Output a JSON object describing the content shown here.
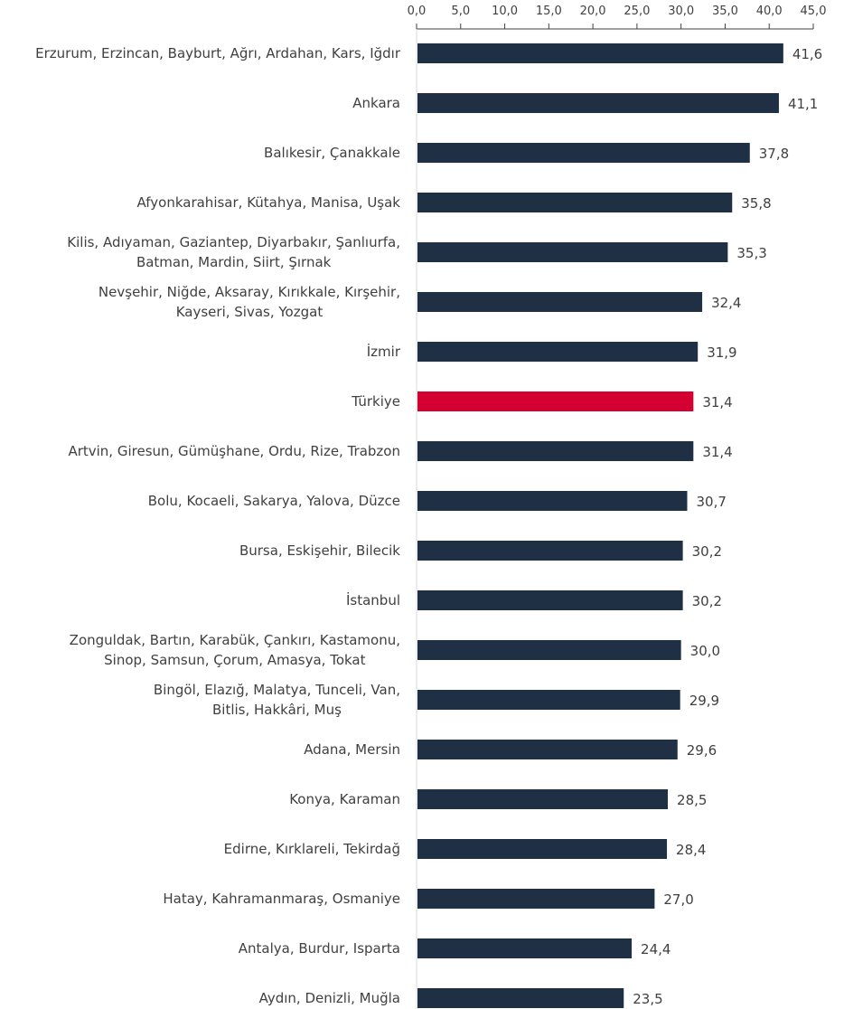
{
  "chart_data": {
    "type": "bar",
    "orientation": "horizontal",
    "title": "",
    "xlabel": "",
    "ylabel": "",
    "xlim": [
      0,
      45
    ],
    "x_ticks": [
      "0,0",
      "5,0",
      "10,0",
      "15,0",
      "20,0",
      "25,0",
      "30,0",
      "35,0",
      "40,0",
      "45,0"
    ],
    "axis_position": "top",
    "grid": false,
    "colors": {
      "default": "#1f3044",
      "highlight": "#d50032"
    },
    "highlight_category": "Türkiye",
    "categories": [
      [
        "Erzurum, Erzincan, Bayburt, Ağrı, Ardahan, Kars, Iğdır"
      ],
      [
        "Ankara"
      ],
      [
        "Balıkesir, Çanakkale"
      ],
      [
        "Afyonkarahisar, Kütahya, Manisa, Uşak"
      ],
      [
        "Kilis, Adıyaman, Gaziantep, Diyarbakır, Şanlıurfa,",
        "Batman, Mardin, Siirt, Şırnak"
      ],
      [
        "Nevşehir, Niğde, Aksaray, Kırıkkale, Kırşehir,",
        "Kayseri, Sivas, Yozgat"
      ],
      [
        "İzmir"
      ],
      [
        "Türkiye"
      ],
      [
        "Artvin, Giresun, Gümüşhane, Ordu, Rize, Trabzon"
      ],
      [
        "Bolu, Kocaeli, Sakarya, Yalova, Düzce"
      ],
      [
        "Bursa, Eskişehir, Bilecik"
      ],
      [
        "İstanbul"
      ],
      [
        "Zonguldak, Bartın, Karabük, Çankırı, Kastamonu,",
        "Sinop, Samsun, Çorum, Amasya, Tokat"
      ],
      [
        "Bingöl, Elazığ, Malatya, Tunceli, Van,",
        "Bitlis, Hakkâri, Muş"
      ],
      [
        "Adana, Mersin"
      ],
      [
        "Konya, Karaman"
      ],
      [
        "Edirne, Kırklareli, Tekirdağ"
      ],
      [
        "Hatay, Kahramanmaraş, Osmaniye"
      ],
      [
        "Antalya, Burdur, Isparta"
      ],
      [
        "Aydın, Denizli, Muğla"
      ]
    ],
    "values": [
      41.6,
      41.1,
      37.8,
      35.8,
      35.3,
      32.4,
      31.9,
      31.4,
      31.4,
      30.7,
      30.2,
      30.2,
      30.0,
      29.9,
      29.6,
      28.5,
      28.4,
      27.0,
      24.4,
      23.5
    ],
    "data_labels": [
      "41,6",
      "41,1",
      "37,8",
      "35,8",
      "35,3",
      "32,4",
      "31,9",
      "31,4",
      "31,4",
      "30,7",
      "30,2",
      "30,2",
      "30,0",
      "29,9",
      "29,6",
      "28,5",
      "28,4",
      "27,0",
      "24,4",
      "23,5"
    ]
  }
}
